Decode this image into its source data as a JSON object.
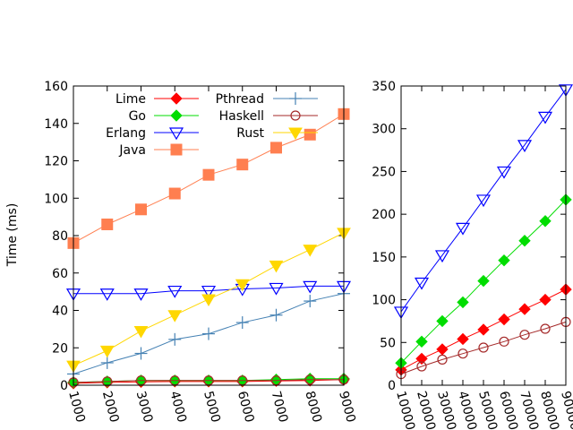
{
  "chart_data": [
    {
      "type": "line",
      "ylabel": "Time (ms)",
      "xlabel": "",
      "xlim": [
        1000,
        9000
      ],
      "ylim": [
        0,
        160
      ],
      "xticks": [
        "1000",
        "2000",
        "3000",
        "4000",
        "5000",
        "6000",
        "7000",
        "8000",
        "9000"
      ],
      "yticks": [
        "0",
        "20",
        "40",
        "60",
        "80",
        "100",
        "120",
        "140",
        "160"
      ],
      "legend_position": "top-left, two columns",
      "x": [
        1000,
        2000,
        3000,
        4000,
        5000,
        6000,
        7000,
        8000,
        9000
      ],
      "series": [
        {
          "name": "Lime",
          "color": "#ff0000",
          "marker": "diamond-filled",
          "values": [
            1,
            1.5,
            1.8,
            2,
            2,
            2,
            2.3,
            2.5,
            3
          ]
        },
        {
          "name": "Go",
          "color": "#00dd00",
          "marker": "diamond-filled",
          "values": [
            1.5,
            2,
            2.5,
            2.5,
            2.5,
            2.5,
            3,
            3.5,
            3.5
          ]
        },
        {
          "name": "Erlang",
          "color": "#0000ff",
          "marker": "triangle-down-open",
          "values": [
            49,
            49,
            49,
            50.5,
            50.5,
            51.5,
            52,
            53,
            53
          ]
        },
        {
          "name": "Java",
          "color": "#ff7f50",
          "marker": "square-filled",
          "values": [
            76,
            86,
            94,
            102.5,
            112.5,
            118,
            127,
            134,
            145
          ]
        },
        {
          "name": "Pthread",
          "color": "#4682b4",
          "marker": "plus",
          "values": [
            6,
            12,
            17,
            24.5,
            27.5,
            33.5,
            37.5,
            45,
            49
          ]
        },
        {
          "name": "Haskell",
          "color": "#a52a2a",
          "marker": "circle-open",
          "values": [
            1.5,
            2,
            2.5,
            2.5,
            2.5,
            2.5,
            2.5,
            3,
            3
          ]
        },
        {
          "name": "Rust",
          "color": "#ffd700",
          "marker": "triangle-down-filled",
          "values": [
            10.5,
            18.5,
            29,
            37.5,
            46,
            54,
            64,
            72.5,
            81.5
          ]
        }
      ]
    },
    {
      "type": "line",
      "xlabel": "",
      "ylabel": "",
      "xlim": [
        10000,
        90000
      ],
      "ylim": [
        0,
        350
      ],
      "xticks": [
        "10000",
        "20000",
        "30000",
        "40000",
        "50000",
        "60000",
        "70000",
        "80000",
        "90000"
      ],
      "yticks": [
        "0",
        "50",
        "100",
        "150",
        "200",
        "250",
        "300",
        "350"
      ],
      "x": [
        10000,
        20000,
        30000,
        40000,
        50000,
        60000,
        70000,
        80000,
        90000
      ],
      "series": [
        {
          "name": "Lime",
          "color": "#ff0000",
          "marker": "diamond-filled",
          "values": [
            18,
            31,
            42,
            54,
            65,
            77,
            89,
            100,
            112
          ]
        },
        {
          "name": "Go",
          "color": "#00dd00",
          "marker": "diamond-filled",
          "values": [
            26,
            51,
            75,
            97,
            122,
            146,
            169,
            192,
            217
          ]
        },
        {
          "name": "Erlang",
          "color": "#0000ff",
          "marker": "triangle-down-open",
          "values": [
            86,
            120,
            152,
            184,
            217,
            250,
            281,
            314,
            346
          ]
        },
        {
          "name": "Haskell",
          "color": "#a52a2a",
          "marker": "circle-open",
          "values": [
            13,
            22,
            30,
            37,
            44,
            51,
            59,
            66,
            74
          ]
        }
      ]
    }
  ]
}
